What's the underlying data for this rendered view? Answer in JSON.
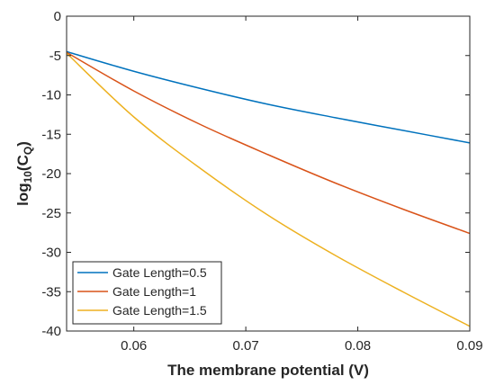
{
  "chart_data": {
    "type": "line",
    "xlabel": "The membrane potential (V)",
    "ylabel": {
      "prefix": "log",
      "sub1": "10",
      "mid": "(C",
      "sub2": "Q",
      "suffix": ")"
    },
    "xlim": [
      0.054,
      0.09
    ],
    "ylim": [
      -40,
      0
    ],
    "xticks": [
      0.06,
      0.07,
      0.08,
      0.09
    ],
    "xtick_labels": [
      "0.06",
      "0.07",
      "0.08",
      "0.09"
    ],
    "yticks": [
      0,
      -5,
      -10,
      -15,
      -20,
      -25,
      -30,
      -35,
      -40
    ],
    "ytick_labels": [
      "0",
      "-5",
      "-10",
      "-15",
      "-20",
      "-25",
      "-30",
      "-35",
      "-40"
    ],
    "grid": false,
    "legend_position": "bottom-left",
    "x": [
      0.054,
      0.06,
      0.066,
      0.072,
      0.078,
      0.084,
      0.09
    ],
    "series": [
      {
        "name": "Gate Length=0.5",
        "color": "#0072BD",
        "values": [
          -4.5,
          -7.0,
          -9.2,
          -11.2,
          -12.9,
          -14.5,
          -16.1
        ]
      },
      {
        "name": "Gate Length=1",
        "color": "#D95319",
        "values": [
          -4.6,
          -9.5,
          -13.8,
          -17.6,
          -21.2,
          -24.5,
          -27.6
        ]
      },
      {
        "name": "Gate Length=1.5",
        "color": "#EDB120",
        "values": [
          -4.7,
          -12.8,
          -19.4,
          -25.3,
          -30.4,
          -35.0,
          -39.4
        ]
      }
    ]
  }
}
